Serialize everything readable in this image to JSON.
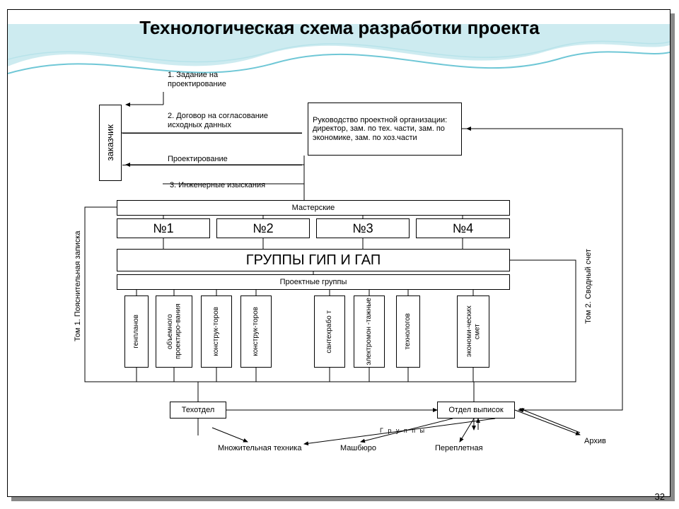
{
  "title": "Технологическая схема разработки проекта",
  "pagenum": "32",
  "labels": {
    "task": "1. Задание на\nпроектирование",
    "agreement": "2. Договор на согласование\nисходных данных",
    "design": "Проектирование",
    "survey": "3. Инженерные изыскания",
    "groups_text": "Г р у п п ы"
  },
  "boxes": {
    "customer": "заказчик",
    "management": "Руководство проектной организации: директор, зам. по тех. части, зам. по экономике, зам. по хоз.части",
    "workshops": "Мастерские",
    "n1": "№1",
    "n2": "№2",
    "n3": "№3",
    "n4": "№4",
    "gip_gap": "ГРУППЫ ГИП И ГАП",
    "project_groups": "Проектные группы",
    "g1": "генпланов",
    "g2": "объемного проектиро-вания",
    "g3": "конструк-торов",
    "g4": "конструк-торов",
    "g5": "сантехрабо т",
    "g6": "электромон -тажные",
    "g7": "технологов",
    "g8": "экономи-ческих смет",
    "tech_dept": "Техотдел",
    "extracts": "Отдел выписок",
    "tom1": "Том 1. Пояснительная записка",
    "tom2": "Том 2. Сводный счет"
  },
  "bottom_labels": {
    "print": "Множительная техника",
    "mash": "Машбюро",
    "bind": "Переплетная",
    "archive": "Архив"
  },
  "style": {
    "stroke": "#000000",
    "bg": "#ffffff",
    "title_fontsize": 26,
    "box_fontsize": 11,
    "gip_fontsize": 20,
    "wave_colors": [
      "#b8e3ea",
      "#6fc7d6"
    ]
  },
  "layout_type": "flowchart"
}
